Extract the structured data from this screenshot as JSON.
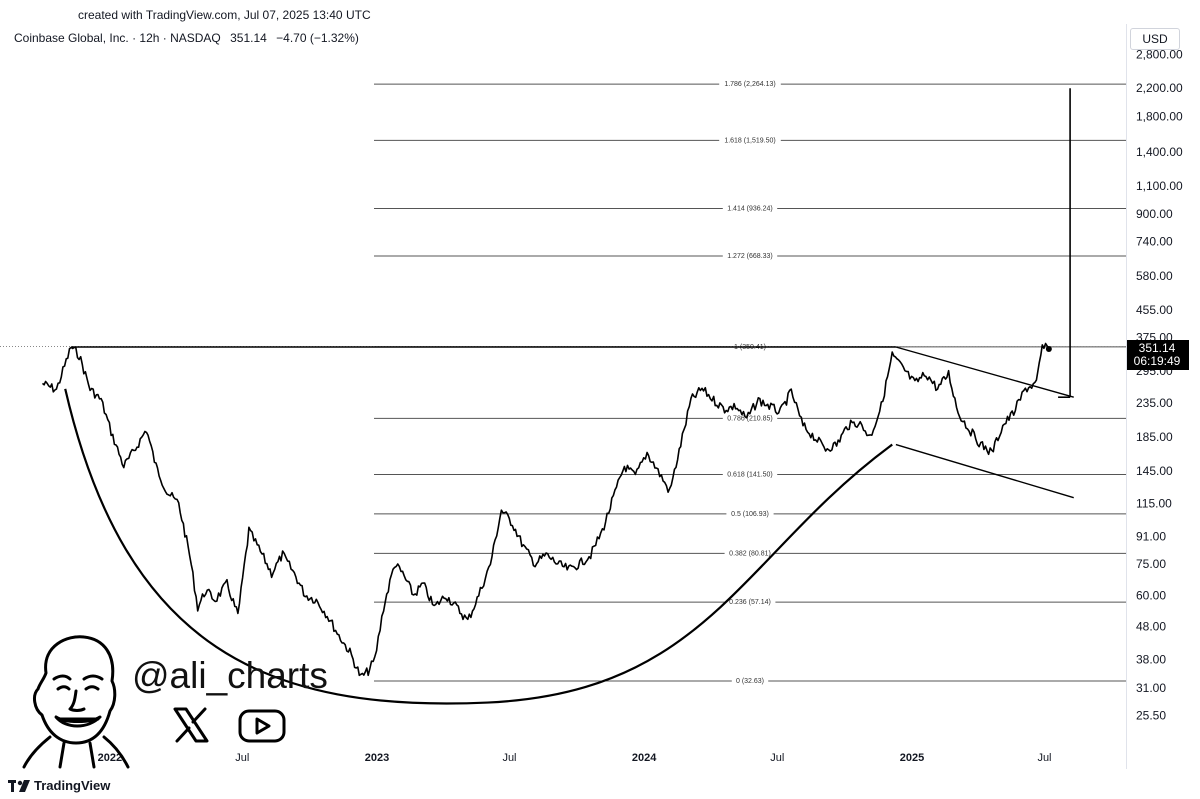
{
  "header": {
    "caption": "created with TradingView.com, Jul 07, 2025 13:40 UTC",
    "symbol": "Coinbase Global, Inc. · 12h · NASDAQ",
    "last_price": "351.14",
    "change": "−4.70 (−1.32%)",
    "currency": "USD"
  },
  "price_badge": {
    "price": "351.14",
    "countdown": "06:19:49"
  },
  "branding": {
    "handle": "@ali_charts",
    "footer_logo": "TradingView",
    "icons": [
      "avatar-caricature-icon",
      "x-logo-icon",
      "youtube-play-icon",
      "tradingview-logo-icon"
    ]
  },
  "chart_data": {
    "type": "line",
    "scale": "log",
    "x_ticks": [
      {
        "label": "2022",
        "bold": true
      },
      {
        "label": "Jul",
        "bold": false
      },
      {
        "label": "2023",
        "bold": true
      },
      {
        "label": "Jul",
        "bold": false
      },
      {
        "label": "2024",
        "bold": true
      },
      {
        "label": "Jul",
        "bold": false
      },
      {
        "label": "2025",
        "bold": true
      },
      {
        "label": "Jul",
        "bold": false
      }
    ],
    "y_ticks": [
      "2,800.00",
      "2,200.00",
      "1,800.00",
      "1,400.00",
      "1,100.00",
      "900.00",
      "740.00",
      "580.00",
      "455.00",
      "375.00",
      "295.00",
      "235.00",
      "185.00",
      "145.00",
      "115.00",
      "91.00",
      "75.00",
      "60.00",
      "48.00",
      "38.00",
      "31.00",
      "25.50"
    ],
    "fib_levels": [
      {
        "label": "1.786 (2,264.13)",
        "value": 2264.13
      },
      {
        "label": "1.618 (1,519.50)",
        "value": 1519.5
      },
      {
        "label": "1.414 (936.24)",
        "value": 936.24
      },
      {
        "label": "1.272 (668.33)",
        "value": 668.33
      },
      {
        "label": "1 (350.41)",
        "value": 350.41
      },
      {
        "label": "0.786 (210.85)",
        "value": 210.85
      },
      {
        "label": "0.618 (141.50)",
        "value": 141.5
      },
      {
        "label": "0.5 (106.93)",
        "value": 106.93
      },
      {
        "label": "0.382 (80.81)",
        "value": 80.81
      },
      {
        "label": "0.236 (57.14)",
        "value": 57.14
      },
      {
        "label": "0 (32.63)",
        "value": 32.63
      }
    ],
    "series": [
      {
        "x": [
          "2021-10-01",
          "2021-10-20",
          "2021-11-09",
          "2021-11-20",
          "2021-12-05",
          "2021-12-20",
          "2022-01-05",
          "2022-01-20",
          "2022-02-05",
          "2022-02-20",
          "2022-03-05",
          "2022-03-20",
          "2022-04-05",
          "2022-04-20",
          "2022-05-01",
          "2022-05-12",
          "2022-05-25",
          "2022-06-10",
          "2022-06-25",
          "2022-07-10",
          "2022-07-28",
          "2022-08-10",
          "2022-08-25",
          "2022-09-10",
          "2022-09-25",
          "2022-10-10",
          "2022-10-25",
          "2022-11-10",
          "2022-11-25",
          "2022-12-10",
          "2022-12-20",
          "2022-12-29",
          "2023-01-10",
          "2023-01-25",
          "2023-02-05",
          "2023-02-20",
          "2023-03-05",
          "2023-03-20",
          "2023-04-05",
          "2023-04-20",
          "2023-05-05",
          "2023-05-20",
          "2023-06-05",
          "2023-06-20",
          "2023-07-05",
          "2023-07-20",
          "2023-08-05",
          "2023-08-20",
          "2023-09-05",
          "2023-09-20",
          "2023-10-05",
          "2023-10-20",
          "2023-11-05",
          "2023-11-20",
          "2023-12-05",
          "2023-12-20",
          "2024-01-05",
          "2024-01-20",
          "2024-02-05",
          "2024-02-20",
          "2024-03-05",
          "2024-03-20",
          "2024-04-05",
          "2024-04-20",
          "2024-05-05",
          "2024-05-20",
          "2024-06-05",
          "2024-06-20",
          "2024-07-05",
          "2024-07-20",
          "2024-08-05",
          "2024-08-20",
          "2024-09-05",
          "2024-09-20",
          "2024-10-05",
          "2024-10-20",
          "2024-11-05",
          "2024-11-20",
          "2024-12-05",
          "2024-12-20",
          "2025-01-05",
          "2025-01-20",
          "2025-02-05",
          "2025-02-20",
          "2025-03-05",
          "2025-03-20",
          "2025-04-05",
          "2025-04-20",
          "2025-05-05",
          "2025-05-20",
          "2025-06-05",
          "2025-06-20",
          "2025-06-28",
          "2025-07-07"
        ],
        "y": [
          270,
          258,
          350,
          330,
          260,
          240,
          185,
          150,
          170,
          195,
          150,
          125,
          115,
          80,
          55,
          62,
          58,
          65,
          52,
          95,
          80,
          70,
          80,
          70,
          60,
          58,
          52,
          45,
          40,
          33.5,
          35,
          38,
          55,
          75,
          70,
          60,
          65,
          55,
          60,
          55,
          50,
          60,
          75,
          110,
          100,
          85,
          75,
          80,
          75,
          72,
          75,
          80,
          95,
          120,
          150,
          140,
          165,
          145,
          125,
          175,
          240,
          260,
          240,
          225,
          230,
          210,
          240,
          230,
          220,
          255,
          200,
          185,
          170,
          175,
          200,
          205,
          185,
          230,
          330,
          300,
          270,
          290,
          260,
          290,
          220,
          195,
          175,
          165,
          200,
          220,
          260,
          270,
          350,
          345
        ]
      }
    ],
    "annotations": [
      "Descending trendline from ~350 (Dec 2024) to ~255 (Aug 2025)",
      "Lower parallel trendline from ~175 (Dec 2024) to ~120 (Aug 2025)",
      "Rounded cup arc from ~270 (Nov 2021) through ~28 (Jun 2023) to ~175 (Dec 2024)",
      "Horizontal resistance at ~350 from Nov 2021 to Dec 2024",
      "Vertical target arrow from ~255 to ~2,264 (Aug 2025)"
    ]
  }
}
